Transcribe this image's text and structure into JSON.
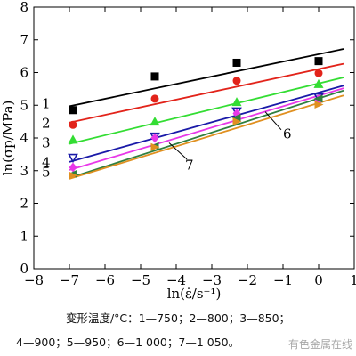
{
  "chart_data": {
    "type": "scatter",
    "xlabel": "ln(ε̇/s⁻¹)",
    "ylabel": "ln(σp/MPa)",
    "xlim": [
      -8,
      1
    ],
    "ylim": [
      0,
      8
    ],
    "xticks": [
      -8,
      -7,
      -6,
      -5,
      -4,
      -3,
      -2,
      -1,
      0,
      1
    ],
    "yticks": [
      0,
      1,
      2,
      3,
      4,
      5,
      6,
      7,
      8
    ],
    "grid": false,
    "series": [
      {
        "name": "1",
        "temperature": "750",
        "marker": "square",
        "color": "#000000",
        "x": [
          -6.9,
          -4.6,
          -2.3,
          0.0
        ],
        "y": [
          4.85,
          5.88,
          6.3,
          6.35
        ],
        "fit_x": [
          -7.0,
          0.7
        ],
        "fit_y": [
          4.97,
          6.72
        ]
      },
      {
        "name": "2",
        "temperature": "800",
        "marker": "circle",
        "color": "#e2231a",
        "x": [
          -6.9,
          -4.6,
          -2.3,
          0.0
        ],
        "y": [
          4.4,
          5.2,
          5.75,
          5.98
        ],
        "fit_x": [
          -7.0,
          0.7
        ],
        "fit_y": [
          4.47,
          6.27
        ]
      },
      {
        "name": "3",
        "temperature": "850",
        "marker": "triangle-up",
        "color": "#33dd33",
        "x": [
          -6.9,
          -4.6,
          -2.3,
          0.0
        ],
        "y": [
          3.95,
          4.5,
          5.1,
          5.65
        ],
        "fit_x": [
          -7.0,
          0.7
        ],
        "fit_y": [
          3.82,
          5.85
        ]
      },
      {
        "name": "4",
        "temperature": "900",
        "marker": "triangle-down-open",
        "color": "#1a1aa8",
        "x": [
          -6.9,
          -4.6,
          -2.3,
          0.0
        ],
        "y": [
          3.4,
          4.05,
          4.82,
          5.25
        ],
        "fit_x": [
          -7.0,
          0.7
        ],
        "fit_y": [
          3.27,
          5.6
        ]
      },
      {
        "name": "5",
        "temperature": "950",
        "marker": "diamond",
        "color": "#e838e8",
        "x": [
          -6.9,
          -4.6,
          -2.3,
          0.0
        ],
        "y": [
          3.1,
          4.0,
          4.75,
          5.15
        ],
        "fit_x": [
          -7.0,
          0.7
        ],
        "fit_y": [
          3.02,
          5.52
        ]
      },
      {
        "name": "6",
        "temperature": "1 000",
        "marker": "triangle-left",
        "color": "#2f7f3f",
        "x": [
          -6.9,
          -4.6,
          -2.3,
          0.0
        ],
        "y": [
          2.9,
          3.75,
          4.62,
          5.2
        ],
        "fit_x": [
          -7.0,
          0.7
        ],
        "fit_y": [
          2.78,
          5.45
        ]
      },
      {
        "name": "7",
        "temperature": "1 050",
        "marker": "triangle-right",
        "color": "#e09020",
        "x": [
          -6.9,
          -4.6,
          -2.3,
          0.0
        ],
        "y": [
          2.85,
          3.72,
          4.5,
          5.02
        ],
        "fit_x": [
          -7.0,
          0.7
        ],
        "fit_y": [
          2.75,
          5.3
        ]
      }
    ],
    "annotations": [
      {
        "text": "6",
        "series": "6"
      },
      {
        "text": "7",
        "series": "7"
      }
    ]
  },
  "caption": {
    "line1": "变形温度/°C：1—750；2—800；3—850；",
    "line2": "4—900；5—950；6—1 000；7—1 050。"
  },
  "watermark": "有色金属在线"
}
